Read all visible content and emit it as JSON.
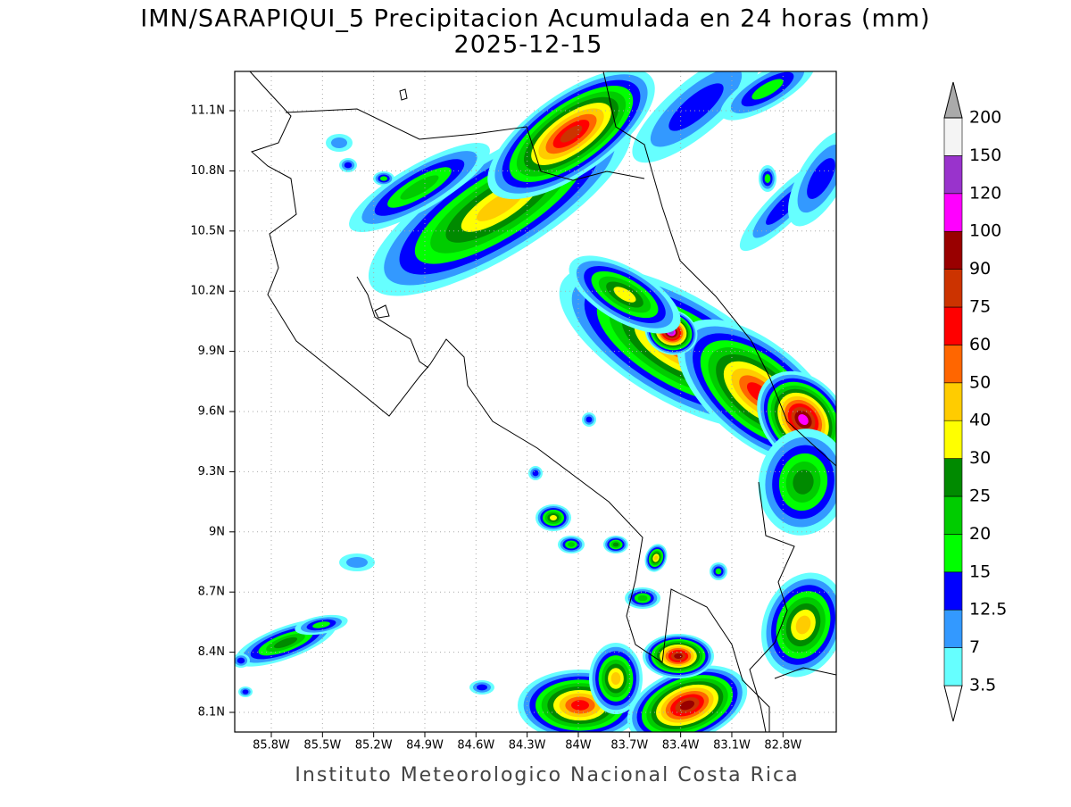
{
  "title": "IMN/SARAPIQUI_5 Precipitacion Acumulada en 24 horas (mm)",
  "date": "2025-12-15",
  "map": {
    "lon_ticks": [
      "85.8W",
      "85.5W",
      "85.2W",
      "84.9W",
      "84.6W",
      "84.3W",
      "84W",
      "83.7W",
      "83.4W",
      "83.1W",
      "82.8W"
    ],
    "lat_ticks": [
      "8.1N",
      "8.4N",
      "8.7N",
      "9N",
      "9.3N",
      "9.6N",
      "9.9N",
      "10.2N",
      "10.5N",
      "10.8N",
      "11.1N"
    ]
  },
  "colorbar": {
    "levels": [
      3.5,
      7,
      12.5,
      15,
      20,
      25,
      30,
      40,
      50,
      60,
      75,
      90,
      100,
      120,
      150,
      200
    ],
    "colors": [
      "#66ffff",
      "#3399ff",
      "#0000ff",
      "#00ff00",
      "#00cc00",
      "#008a00",
      "#ffff00",
      "#ffcc00",
      "#ff6600",
      "#ff0000",
      "#cc3300",
      "#990000",
      "#ff00ff",
      "#9933cc",
      "#f4f4f4"
    ],
    "under_color": "#ffffff",
    "over_color": "#aaaaaa"
  },
  "footer": "Instituto Meteorologico Nacional Costa Rica"
}
